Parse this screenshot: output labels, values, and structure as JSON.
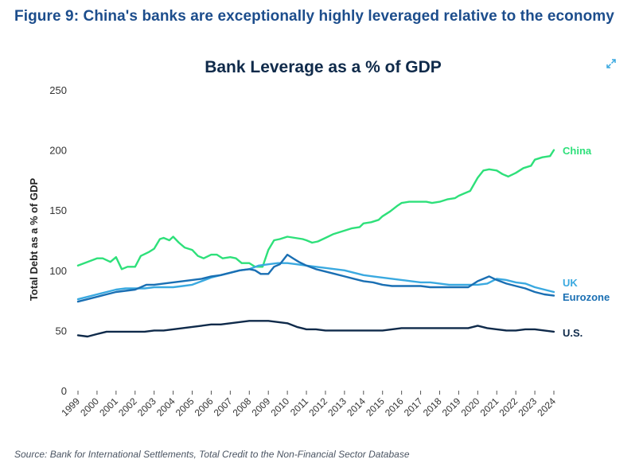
{
  "figure_heading": "Figure 9: China's banks are exceptionally highly leveraged relative to the economy",
  "source_note": "Source: Bank for International Settlements, Total Credit to the Non-Financial Sector Database",
  "icons": {
    "expand": "expand-icon"
  },
  "colors": {
    "heading": "#1c4d8c",
    "china": "#2ee07a",
    "uk": "#3aa9e0",
    "eurozone": "#1a6fb3",
    "us": "#0f2a4a",
    "axis": "#444444"
  },
  "chart_data": {
    "type": "line",
    "title": "Bank Leverage as a % of GDP",
    "ylabel": "Total Debt as a % of GDP",
    "xlabel": "",
    "xlim": [
      1999,
      2024
    ],
    "ylim": [
      0,
      250
    ],
    "yticks": [
      0,
      50,
      100,
      150,
      200,
      250
    ],
    "xticks": [
      1999,
      2000,
      2001,
      2002,
      2003,
      2004,
      2005,
      2006,
      2007,
      2008,
      2009,
      2010,
      2011,
      2012,
      2013,
      2014,
      2015,
      2016,
      2017,
      2018,
      2019,
      2020,
      2021,
      2022,
      2023,
      2024
    ],
    "grid": false,
    "legend": "inline-right",
    "series": [
      {
        "name": "China",
        "key": "china",
        "x": [
          1999,
          1999.5,
          2000,
          2000.3,
          2000.7,
          2001,
          2001.3,
          2001.6,
          2002,
          2002.3,
          2002.7,
          2003,
          2003.3,
          2003.5,
          2003.8,
          2004,
          2004.3,
          2004.6,
          2005,
          2005.3,
          2005.6,
          2006,
          2006.3,
          2006.6,
          2007,
          2007.3,
          2007.6,
          2008,
          2008.3,
          2008.7,
          2009,
          2009.3,
          2009.6,
          2010,
          2010.4,
          2010.8,
          2011,
          2011.3,
          2011.6,
          2012,
          2012.4,
          2012.8,
          2013,
          2013.4,
          2013.8,
          2014,
          2014.4,
          2014.8,
          2015,
          2015.4,
          2015.8,
          2016,
          2016.4,
          2016.8,
          2017,
          2017.3,
          2017.6,
          2018,
          2018.4,
          2018.8,
          2019,
          2019.3,
          2019.6,
          2020,
          2020.3,
          2020.6,
          2021,
          2021.3,
          2021.6,
          2022,
          2022.4,
          2022.8,
          2023,
          2023.4,
          2023.8,
          2024
        ],
        "values": [
          104,
          107,
          110,
          110,
          107,
          111,
          101,
          103,
          103,
          112,
          115,
          118,
          126,
          127,
          125,
          128,
          123,
          119,
          117,
          112,
          110,
          113,
          113,
          110,
          111,
          110,
          106,
          106,
          103,
          103,
          117,
          125,
          126,
          128,
          127,
          126,
          125,
          123,
          124,
          127,
          130,
          132,
          133,
          135,
          136,
          139,
          140,
          142,
          145,
          149,
          154,
          156,
          157,
          157,
          157,
          157,
          156,
          157,
          159,
          160,
          162,
          164,
          166,
          177,
          183,
          184,
          183,
          180,
          178,
          181,
          185,
          187,
          192,
          194,
          195,
          200
        ]
      },
      {
        "name": "UK",
        "key": "uk",
        "x": [
          1999,
          1999.5,
          2000,
          2000.5,
          2001,
          2001.5,
          2002,
          2002.5,
          2003,
          2003.5,
          2004,
          2004.5,
          2005,
          2005.5,
          2006,
          2006.5,
          2007,
          2007.5,
          2008,
          2008.5,
          2009,
          2009.5,
          2010,
          2010.5,
          2011,
          2011.5,
          2012,
          2012.5,
          2013,
          2013.5,
          2014,
          2014.5,
          2015,
          2015.5,
          2016,
          2016.5,
          2017,
          2017.5,
          2018,
          2018.5,
          2019,
          2019.5,
          2020,
          2020.5,
          2021,
          2021.5,
          2022,
          2022.5,
          2023,
          2023.5,
          2024
        ],
        "values": [
          76,
          78,
          80,
          82,
          84,
          85,
          85,
          85,
          86,
          86,
          86,
          87,
          88,
          91,
          94,
          96,
          98,
          100,
          101,
          104,
          105,
          106,
          106,
          105,
          104,
          103,
          102,
          101,
          100,
          98,
          96,
          95,
          94,
          93,
          92,
          91,
          90,
          90,
          89,
          88,
          88,
          88,
          88,
          89,
          93,
          92,
          90,
          89,
          86,
          84,
          82
        ]
      },
      {
        "name": "Eurozone",
        "key": "eurozone",
        "x": [
          1999,
          1999.5,
          2000,
          2000.5,
          2001,
          2001.5,
          2002,
          2002.3,
          2002.6,
          2003,
          2003.5,
          2004,
          2004.5,
          2005,
          2005.5,
          2006,
          2006.5,
          2007,
          2007.5,
          2008,
          2008.3,
          2008.6,
          2009,
          2009.3,
          2009.6,
          2010,
          2010.3,
          2010.6,
          2011,
          2011.5,
          2012,
          2012.5,
          2013,
          2013.5,
          2014,
          2014.5,
          2015,
          2015.5,
          2016,
          2016.5,
          2017,
          2017.5,
          2018,
          2018.5,
          2019,
          2019.5,
          2020,
          2020.3,
          2020.6,
          2021,
          2021.5,
          2022,
          2022.5,
          2023,
          2023.5,
          2024
        ],
        "values": [
          74,
          76,
          78,
          80,
          82,
          83,
          84,
          86,
          88,
          88,
          89,
          90,
          91,
          92,
          93,
          95,
          96,
          98,
          100,
          101,
          100,
          97,
          97,
          103,
          105,
          113,
          110,
          107,
          104,
          101,
          99,
          97,
          95,
          93,
          91,
          90,
          88,
          87,
          87,
          87,
          87,
          86,
          86,
          86,
          86,
          86,
          91,
          93,
          95,
          92,
          89,
          87,
          85,
          82,
          80,
          79
        ]
      },
      {
        "name": "U.S.",
        "key": "us",
        "x": [
          1999,
          1999.5,
          2000,
          2000.5,
          2001,
          2001.5,
          2002,
          2002.5,
          2003,
          2003.5,
          2004,
          2004.5,
          2005,
          2005.5,
          2006,
          2006.5,
          2007,
          2007.5,
          2008,
          2008.5,
          2009,
          2009.5,
          2010,
          2010.5,
          2011,
          2011.5,
          2012,
          2012.5,
          2013,
          2013.5,
          2014,
          2014.5,
          2015,
          2015.5,
          2016,
          2016.5,
          2017,
          2017.5,
          2018,
          2018.5,
          2019,
          2019.5,
          2020,
          2020.5,
          2021,
          2021.5,
          2022,
          2022.5,
          2023,
          2023.5,
          2024
        ],
        "values": [
          46,
          45,
          47,
          49,
          49,
          49,
          49,
          49,
          50,
          50,
          51,
          52,
          53,
          54,
          55,
          55,
          56,
          57,
          58,
          58,
          58,
          57,
          56,
          53,
          51,
          51,
          50,
          50,
          50,
          50,
          50,
          50,
          50,
          51,
          52,
          52,
          52,
          52,
          52,
          52,
          52,
          52,
          54,
          52,
          51,
          50,
          50,
          51,
          51,
          50,
          49
        ]
      }
    ]
  }
}
